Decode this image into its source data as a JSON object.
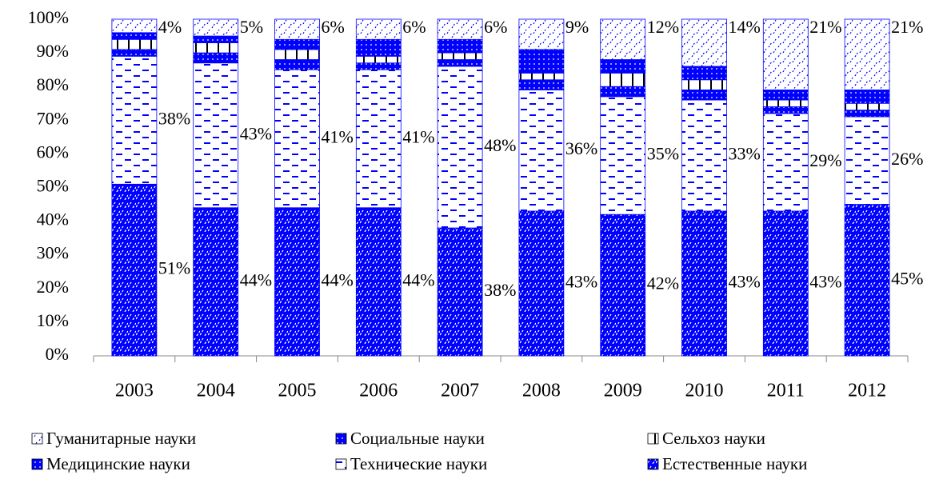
{
  "chart_data": {
    "type": "bar",
    "stacked": true,
    "categories": [
      "2003",
      "2004",
      "2005",
      "2006",
      "2007",
      "2008",
      "2009",
      "2010",
      "2011",
      "2012"
    ],
    "ylim": [
      0,
      100
    ],
    "yticks": [
      {
        "value": 0,
        "label": "0%"
      },
      {
        "value": 10,
        "label": "10%"
      },
      {
        "value": 20,
        "label": "20%"
      },
      {
        "value": 30,
        "label": "30%"
      },
      {
        "value": 40,
        "label": "40%"
      },
      {
        "value": 50,
        "label": "50%"
      },
      {
        "value": 60,
        "label": "60%"
      },
      {
        "value": 70,
        "label": "70%"
      },
      {
        "value": 80,
        "label": "80%"
      },
      {
        "value": 90,
        "label": "90%"
      },
      {
        "value": 100,
        "label": "100%"
      }
    ],
    "series": [
      {
        "name": "Естественные науки",
        "color": "#0000ff",
        "pattern": "diag-blue",
        "values": [
          51,
          44,
          44,
          44,
          38,
          43,
          42,
          43,
          43,
          45
        ],
        "value_labels": [
          "51%",
          "44%",
          "44%",
          "44%",
          "38%",
          "43%",
          "42%",
          "43%",
          "43%",
          "45%"
        ]
      },
      {
        "name": "Технические науки",
        "color": "#0000ff",
        "pattern": "dash-white",
        "values": [
          38,
          43,
          41,
          41,
          48,
          36,
          35,
          33,
          29,
          26
        ],
        "value_labels": [
          "38%",
          "43%",
          "41%",
          "41%",
          "48%",
          "36%",
          "35%",
          "33%",
          "29%",
          "26%"
        ]
      },
      {
        "name": "Медицинские науки",
        "color": "#0000ff",
        "pattern": "dots-blue",
        "values": [
          2,
          3,
          3,
          2,
          2,
          3,
          3,
          3,
          2,
          2
        ]
      },
      {
        "name": "Сельхоз науки",
        "color": "#0000ff",
        "pattern": "vert-white",
        "values": [
          3,
          3,
          3,
          2,
          2,
          2,
          4,
          3,
          2,
          2
        ]
      },
      {
        "name": "Социальные науки",
        "color": "#0000ff",
        "pattern": "dots-blue",
        "values": [
          2,
          2,
          3,
          5,
          4,
          7,
          4,
          4,
          3,
          4
        ]
      },
      {
        "name": "Гуманитарные науки",
        "color": "#0000ff",
        "pattern": "diag-white",
        "values": [
          4,
          5,
          6,
          6,
          6,
          9,
          12,
          14,
          21,
          21
        ],
        "value_labels": [
          "4%",
          "5%",
          "6%",
          "6%",
          "6%",
          "9%",
          "12%",
          "14%",
          "21%",
          "21%"
        ]
      }
    ],
    "legend_order": [
      5,
      4,
      3,
      2,
      1,
      0
    ]
  }
}
